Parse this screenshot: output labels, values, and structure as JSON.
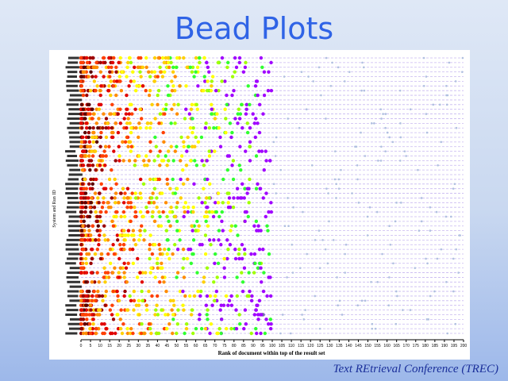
{
  "slide": {
    "title": "Bead Plots",
    "footer": "Text REtrieval Conference (TREC)"
  },
  "chart_data": {
    "type": "scatter",
    "title": "",
    "xlabel": "Rank of document within top of the result set",
    "ylabel": "System and Run ID",
    "xlim": [
      0,
      200
    ],
    "x_ticks": [
      "0",
      "5",
      "10",
      "15",
      "20",
      "25",
      "30",
      "35",
      "40",
      "45",
      "50",
      "55",
      "60",
      "65",
      "70",
      "75",
      "80",
      "85",
      "90",
      "95",
      "100",
      "105",
      "110",
      "115",
      "120",
      "125",
      "130",
      "135",
      "140",
      "145",
      "150",
      "155",
      "160",
      "165",
      "170",
      "175",
      "180",
      "185",
      "190",
      "195",
      "200"
    ],
    "row_count": 60,
    "bead_colors": [
      "#5a0000",
      "#9a0000",
      "#e00000",
      "#ff4000",
      "#ff8c00",
      "#ffd000",
      "#ffff00",
      "#a0ff00",
      "#30ff30",
      "#a000ff",
      "#b0c0e0"
    ],
    "grid": "horizontal dashed lines per run",
    "legend": "none"
  }
}
